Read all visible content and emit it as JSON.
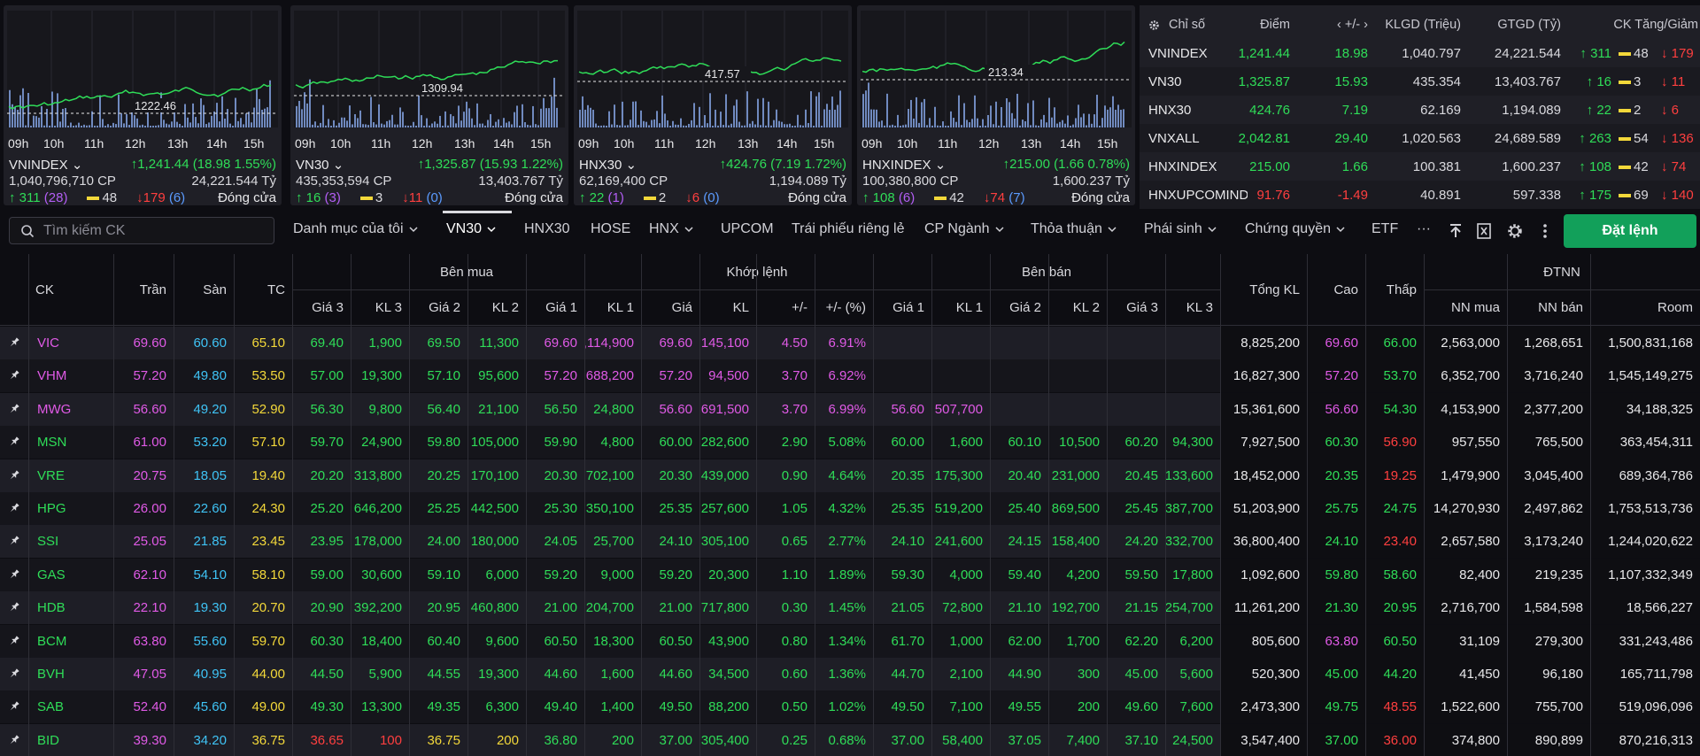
{
  "index_cards": [
    {
      "name": "VNINDEX",
      "chart_label": "1222.46",
      "change": "1,241.44 (18.98 1.55%)",
      "volume": "1,040,796,710 CP",
      "value": "24,221.544 Tỷ",
      "up": "311",
      "up_ceil": "(28)",
      "ref": "48",
      "down": "179",
      "down_floor": "(6)",
      "status": "Đóng cửa"
    },
    {
      "name": "VN30",
      "chart_label": "1309.94",
      "change": "1,325.87 (15.93 1.22%)",
      "volume": "435,353,594 CP",
      "value": "13,403.767 Tỷ",
      "up": "16",
      "up_ceil": "(3)",
      "ref": "3",
      "down": "11",
      "down_floor": "(0)",
      "status": "Đóng cửa"
    },
    {
      "name": "HNX30",
      "chart_label": "417.57",
      "change": "424.76 (7.19 1.72%)",
      "volume": "62,169,400 CP",
      "value": "1,194.089 Tỷ",
      "up": "22",
      "up_ceil": "(1)",
      "ref": "2",
      "down": "6",
      "down_floor": "(0)",
      "status": "Đóng cửa"
    },
    {
      "name": "HNXINDEX",
      "chart_label": "213.34",
      "change": "215.00 (1.66 0.78%)",
      "volume": "100,380,800 CP",
      "value": "1,600.237 Tỷ",
      "up": "108",
      "up_ceil": "(6)",
      "ref": "42",
      "down": "74",
      "down_floor": "(7)",
      "status": "Đóng cửa"
    }
  ],
  "hours": [
    "09h",
    "10h",
    "11h",
    "12h",
    "13h",
    "14h",
    "15h"
  ],
  "summary": {
    "headers": {
      "index": "Chỉ số",
      "point": "Điểm",
      "change": "+/-",
      "volume": "KLGD (Triệu)",
      "value": "GTGD (Tỷ)",
      "breadth": "CK Tăng/Giảm"
    },
    "rows": [
      {
        "index": "VNINDEX",
        "point": "1,241.44",
        "change": "18.98",
        "volume": "1,040.797",
        "value": "24,221.544",
        "up": "311",
        "ref": "48",
        "down": "179",
        "dir": "up"
      },
      {
        "index": "VN30",
        "point": "1,325.87",
        "change": "15.93",
        "volume": "435.354",
        "value": "13,403.767",
        "up": "16",
        "ref": "3",
        "down": "11",
        "dir": "up"
      },
      {
        "index": "HNX30",
        "point": "424.76",
        "change": "7.19",
        "volume": "62.169",
        "value": "1,194.089",
        "up": "22",
        "ref": "2",
        "down": "6",
        "dir": "up"
      },
      {
        "index": "VNXALL",
        "point": "2,042.81",
        "change": "29.40",
        "volume": "1,020.563",
        "value": "24,689.589",
        "up": "263",
        "ref": "54",
        "down": "136",
        "dir": "up"
      },
      {
        "index": "HNXINDEX",
        "point": "215.00",
        "change": "1.66",
        "volume": "100.381",
        "value": "1,600.237",
        "up": "108",
        "ref": "42",
        "down": "74",
        "dir": "up"
      },
      {
        "index": "HNXUPCOMINDE",
        "point": "91.76",
        "change": "-1.49",
        "volume": "40.891",
        "value": "597.338",
        "up": "175",
        "ref": "69",
        "down": "140",
        "dir": "down"
      }
    ]
  },
  "toolbar": {
    "search_placeholder": "Tìm kiếm CK",
    "tabs": [
      "Danh mục của tôi",
      "VN30",
      "HNX30",
      "HOSE",
      "HNX",
      "UPCOM",
      "Trái phiếu riêng lẻ",
      "CP Ngành",
      "Thỏa thuận",
      "Phái sinh",
      "Chứng quyền",
      "ETF",
      "···"
    ],
    "order_button": "Đặt lệnh"
  },
  "table": {
    "group_headers": {
      "buy": "Bên mua",
      "match": "Khớp lệnh",
      "sell": "Bên bán",
      "foreign": "ĐTNN"
    },
    "columns": {
      "ck": "CK",
      "ceil": "Trần",
      "floor": "Sàn",
      "ref": "TC",
      "g3": "Giá 3",
      "kl3": "KL 3",
      "g2": "Giá 2",
      "kl2": "KL 2",
      "g1": "Giá 1",
      "kl1": "KL 1",
      "price": "Giá",
      "vol": "KL",
      "chg": "+/-",
      "pct": "+/- (%)",
      "total": "Tổng KL",
      "high": "Cao",
      "low": "Thấp",
      "nn_buy": "NN mua",
      "nn_sell": "NN bán",
      "room": "Room"
    },
    "rows": [
      {
        "ck": "VIC",
        "ceil": "69.60",
        "floor": "60.60",
        "ref": "65.10",
        "b3": "69.40",
        "bk3": "1,900",
        "b2": "69.50",
        "bk2": "11,300",
        "b1": "69.60",
        "bk1": ",114,900",
        "price": "69.60",
        "vol": "145,100",
        "chg": "4.50",
        "pct": "6.91%",
        "s1": "",
        "sk1": "",
        "s2": "",
        "sk2": "",
        "s3": "",
        "sk3": "",
        "total": "8,825,200",
        "high": "69.60",
        "low": "66.00",
        "nn_buy": "2,563,000",
        "nn_sell": "1,268,651",
        "room": "1,500,831,168"
      },
      {
        "ck": "VHM",
        "ceil": "57.20",
        "floor": "49.80",
        "ref": "53.50",
        "b3": "57.00",
        "bk3": "19,300",
        "b2": "57.10",
        "bk2": "95,600",
        "b1": "57.20",
        "bk1": ",688,200",
        "price": "57.20",
        "vol": "94,500",
        "chg": "3.70",
        "pct": "6.92%",
        "s1": "",
        "sk1": "",
        "s2": "",
        "sk2": "",
        "s3": "",
        "sk3": "",
        "total": "16,827,300",
        "high": "57.20",
        "low": "53.70",
        "nn_buy": "6,352,700",
        "nn_sell": "3,716,240",
        "room": "1,545,149,275"
      },
      {
        "ck": "MWG",
        "ceil": "56.60",
        "floor": "49.20",
        "ref": "52.90",
        "b3": "56.30",
        "bk3": "9,800",
        "b2": "56.40",
        "bk2": "21,100",
        "b1": "56.50",
        "bk1": "24,800",
        "price": "56.60",
        "vol": "691,500",
        "chg": "3.70",
        "pct": "6.99%",
        "s1": "56.60",
        "sk1": "507,700",
        "s2": "",
        "sk2": "",
        "s3": "",
        "sk3": "",
        "total": "15,361,600",
        "high": "56.60",
        "low": "54.30",
        "nn_buy": "4,153,900",
        "nn_sell": "2,377,200",
        "room": "34,188,325"
      },
      {
        "ck": "MSN",
        "ceil": "61.00",
        "floor": "53.20",
        "ref": "57.10",
        "b3": "59.70",
        "bk3": "24,900",
        "b2": "59.80",
        "bk2": "105,000",
        "b1": "59.90",
        "bk1": "4,800",
        "price": "60.00",
        "vol": "282,600",
        "chg": "2.90",
        "pct": "5.08%",
        "s1": "60.00",
        "sk1": "1,600",
        "s2": "60.10",
        "sk2": "10,500",
        "s3": "60.20",
        "sk3": "94,300",
        "total": "7,927,500",
        "high": "60.30",
        "low": "56.90",
        "nn_buy": "957,550",
        "nn_sell": "765,500",
        "room": "363,454,311"
      },
      {
        "ck": "VRE",
        "ceil": "20.75",
        "floor": "18.05",
        "ref": "19.40",
        "b3": "20.20",
        "bk3": "313,800",
        "b2": "20.25",
        "bk2": "170,100",
        "b1": "20.30",
        "bk1": "702,100",
        "price": "20.30",
        "vol": "439,000",
        "chg": "0.90",
        "pct": "4.64%",
        "s1": "20.35",
        "sk1": "175,300",
        "s2": "20.40",
        "sk2": "231,000",
        "s3": "20.45",
        "sk3": "133,600",
        "total": "18,452,000",
        "high": "20.35",
        "low": "19.25",
        "nn_buy": "1,479,900",
        "nn_sell": "3,045,400",
        "room": "689,364,786"
      },
      {
        "ck": "HPG",
        "ceil": "26.00",
        "floor": "22.60",
        "ref": "24.30",
        "b3": "25.20",
        "bk3": "646,200",
        "b2": "25.25",
        "bk2": "442,500",
        "b1": "25.30",
        "bk1": "350,100",
        "price": "25.35",
        "vol": ",257,600",
        "chg": "1.05",
        "pct": "4.32%",
        "s1": "25.35",
        "sk1": "519,200",
        "s2": "25.40",
        "sk2": "869,500",
        "s3": "25.45",
        "sk3": "387,700",
        "total": "51,203,900",
        "high": "25.75",
        "low": "24.75",
        "nn_buy": "14,270,930",
        "nn_sell": "2,497,862",
        "room": "1,753,513,736"
      },
      {
        "ck": "SSI",
        "ceil": "25.05",
        "floor": "21.85",
        "ref": "23.45",
        "b3": "23.95",
        "bk3": "178,000",
        "b2": "24.00",
        "bk2": "180,000",
        "b1": "24.05",
        "bk1": "25,700",
        "price": "24.10",
        "vol": ",305,100",
        "chg": "0.65",
        "pct": "2.77%",
        "s1": "24.10",
        "sk1": "241,600",
        "s2": "24.15",
        "sk2": "158,400",
        "s3": "24.20",
        "sk3": "332,700",
        "total": "36,800,400",
        "high": "24.10",
        "low": "23.40",
        "nn_buy": "2,657,580",
        "nn_sell": "3,173,240",
        "room": "1,244,020,622"
      },
      {
        "ck": "GAS",
        "ceil": "62.10",
        "floor": "54.10",
        "ref": "58.10",
        "b3": "59.00",
        "bk3": "30,600",
        "b2": "59.10",
        "bk2": "6,000",
        "b1": "59.20",
        "bk1": "9,000",
        "price": "59.20",
        "vol": "20,300",
        "chg": "1.10",
        "pct": "1.89%",
        "s1": "59.30",
        "sk1": "4,000",
        "s2": "59.40",
        "sk2": "4,200",
        "s3": "59.50",
        "sk3": "17,800",
        "total": "1,092,600",
        "high": "59.80",
        "low": "58.60",
        "nn_buy": "82,400",
        "nn_sell": "219,235",
        "room": "1,107,332,349"
      },
      {
        "ck": "HDB",
        "ceil": "22.10",
        "floor": "19.30",
        "ref": "20.70",
        "b3": "20.90",
        "bk3": "392,200",
        "b2": "20.95",
        "bk2": "460,800",
        "b1": "21.00",
        "bk1": "204,700",
        "price": "21.00",
        "vol": "717,800",
        "chg": "0.30",
        "pct": "1.45%",
        "s1": "21.05",
        "sk1": "72,800",
        "s2": "21.10",
        "sk2": "192,700",
        "s3": "21.15",
        "sk3": "254,700",
        "total": "11,261,200",
        "high": "21.30",
        "low": "20.95",
        "nn_buy": "2,716,700",
        "nn_sell": "1,584,598",
        "room": "18,566,227"
      },
      {
        "ck": "BCM",
        "ceil": "63.80",
        "floor": "55.60",
        "ref": "59.70",
        "b3": "60.30",
        "bk3": "18,400",
        "b2": "60.40",
        "bk2": "9,600",
        "b1": "60.50",
        "bk1": "18,300",
        "price": "60.50",
        "vol": "43,900",
        "chg": "0.80",
        "pct": "1.34%",
        "s1": "61.70",
        "sk1": "1,000",
        "s2": "62.00",
        "sk2": "1,700",
        "s3": "62.20",
        "sk3": "6,200",
        "total": "805,600",
        "high": "63.80",
        "low": "60.50",
        "nn_buy": "31,109",
        "nn_sell": "279,300",
        "room": "331,243,486"
      },
      {
        "ck": "BVH",
        "ceil": "47.05",
        "floor": "40.95",
        "ref": "44.00",
        "b3": "44.50",
        "bk3": "5,900",
        "b2": "44.55",
        "bk2": "19,300",
        "b1": "44.60",
        "bk1": "1,600",
        "price": "44.60",
        "vol": "34,500",
        "chg": "0.60",
        "pct": "1.36%",
        "s1": "44.70",
        "sk1": "2,100",
        "s2": "44.90",
        "sk2": "300",
        "s3": "45.00",
        "sk3": "5,600",
        "total": "520,300",
        "high": "45.00",
        "low": "44.20",
        "nn_buy": "41,450",
        "nn_sell": "96,180",
        "room": "165,711,798"
      },
      {
        "ck": "SAB",
        "ceil": "52.40",
        "floor": "45.60",
        "ref": "49.00",
        "b3": "49.30",
        "bk3": "13,300",
        "b2": "49.35",
        "bk2": "6,300",
        "b1": "49.40",
        "bk1": "1,400",
        "price": "49.50",
        "vol": "88,200",
        "chg": "0.50",
        "pct": "1.02%",
        "s1": "49.50",
        "sk1": "7,100",
        "s2": "49.55",
        "sk2": "200",
        "s3": "49.60",
        "sk3": "7,600",
        "total": "2,473,300",
        "high": "49.75",
        "low": "48.55",
        "nn_buy": "1,522,600",
        "nn_sell": "755,700",
        "room": "519,096,096"
      },
      {
        "ck": "BID",
        "ceil": "39.30",
        "floor": "34.20",
        "ref": "36.75",
        "b3": "36.65",
        "bk3": "100",
        "b2": "36.75",
        "bk2": "200",
        "b1": "36.80",
        "bk1": "200",
        "price": "37.00",
        "vol": "305,400",
        "chg": "0.25",
        "pct": "0.68%",
        "s1": "37.00",
        "sk1": "58,400",
        "s2": "37.05",
        "sk2": "7,400",
        "s3": "37.10",
        "sk3": "24,500",
        "total": "3,547,400",
        "high": "37.00",
        "low": "36.00",
        "nn_buy": "374,800",
        "nn_sell": "890,899",
        "room": "870,216,313"
      }
    ]
  },
  "colors": {
    "up": "#2fdd58",
    "down": "#ff3f3f",
    "ref": "#f3d83a",
    "ceil": "#e05ae6",
    "floor": "#3fc3f5",
    "accent": "#12a05a"
  }
}
